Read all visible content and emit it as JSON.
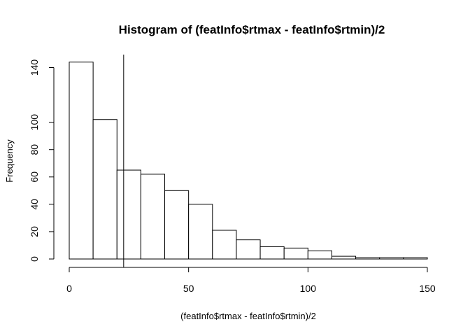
{
  "chart_data": {
    "type": "bar",
    "title": "Histogram of (featInfo$rtmax - featInfo$rtmin)/2",
    "xlabel": "(featInfo$rtmax - featInfo$rtmin)/2",
    "ylabel": "Frequency",
    "bin_edges": [
      0,
      10,
      20,
      30,
      40,
      50,
      60,
      70,
      80,
      90,
      100,
      110,
      120,
      130,
      140,
      150
    ],
    "values": [
      144,
      102,
      65,
      62,
      50,
      40,
      21,
      14,
      9,
      8,
      6,
      2,
      1,
      1,
      1
    ],
    "xlim": [
      0,
      150
    ],
    "ylim": [
      0,
      150
    ],
    "x_ticks": [
      0,
      50,
      100,
      150
    ],
    "y_ticks": [
      0,
      20,
      40,
      60,
      80,
      100,
      140
    ],
    "vline": 22.8,
    "grid": false,
    "legend": "none",
    "colors": {
      "bar_fill": "#ffffff",
      "bar_stroke": "#000000",
      "axis": "#000000",
      "vline": "#000000"
    }
  }
}
